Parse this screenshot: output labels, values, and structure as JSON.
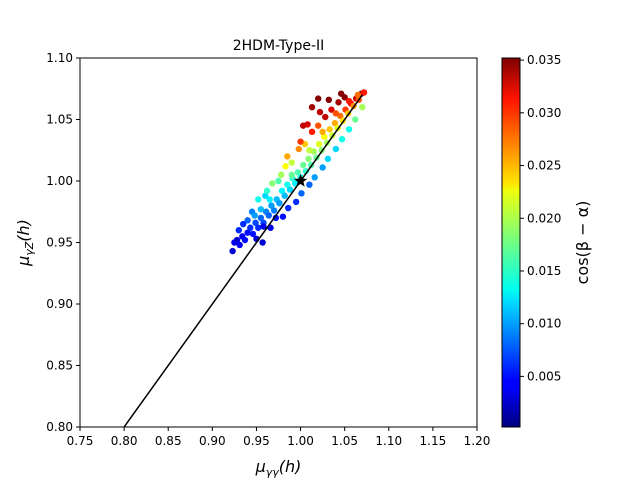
{
  "chart_data": {
    "type": "scatter",
    "title": "2HDM-Type-II",
    "xlabel_base": "μ",
    "xlabel_sub": "γγ",
    "xlabel_arg": "(h)",
    "ylabel_base": "μ",
    "ylabel_sub": "γZ",
    "ylabel_arg": "(h)",
    "xlim": [
      0.75,
      1.2
    ],
    "ylim": [
      0.8,
      1.1
    ],
    "xticks": [
      "0.75",
      "0.80",
      "0.85",
      "0.90",
      "0.95",
      "1.00",
      "1.05",
      "1.10",
      "1.15",
      "1.20"
    ],
    "yticks": [
      "0.80",
      "0.85",
      "0.90",
      "0.95",
      "1.00",
      "1.05",
      "1.10"
    ],
    "grid": false,
    "colormap": "jet",
    "colorbar": {
      "label": "cos(β − α)",
      "range": [
        0.0002,
        0.0352
      ],
      "ticks": [
        "0.005",
        "0.010",
        "0.015",
        "0.020",
        "0.025",
        "0.030",
        "0.035"
      ]
    },
    "reference_line": {
      "x": [
        0.8,
        1.07
      ],
      "y": [
        0.8,
        1.07
      ]
    },
    "sm_point": {
      "x": 1.0,
      "y": 1.0,
      "marker": "star"
    },
    "points": [
      [
        0.923,
        0.943,
        0.003
      ],
      [
        0.925,
        0.95,
        0.004
      ],
      [
        0.928,
        0.952,
        0.003
      ],
      [
        0.931,
        0.948,
        0.004
      ],
      [
        0.934,
        0.955,
        0.004
      ],
      [
        0.937,
        0.952,
        0.005
      ],
      [
        0.94,
        0.958,
        0.005
      ],
      [
        0.943,
        0.962,
        0.006
      ],
      [
        0.946,
        0.957,
        0.005
      ],
      [
        0.949,
        0.966,
        0.007
      ],
      [
        0.952,
        0.962,
        0.006
      ],
      [
        0.955,
        0.97,
        0.008
      ],
      [
        0.958,
        0.966,
        0.007
      ],
      [
        0.961,
        0.975,
        0.009
      ],
      [
        0.964,
        0.972,
        0.008
      ],
      [
        0.967,
        0.98,
        0.01
      ],
      [
        0.97,
        0.976,
        0.009
      ],
      [
        0.973,
        0.985,
        0.011
      ],
      [
        0.976,
        0.982,
        0.01
      ],
      [
        0.979,
        0.992,
        0.013
      ],
      [
        0.982,
        0.988,
        0.011
      ],
      [
        0.985,
        0.997,
        0.014
      ],
      [
        0.988,
        0.993,
        0.012
      ],
      [
        0.991,
        1.002,
        0.015
      ],
      [
        0.994,
        0.998,
        0.013
      ],
      [
        0.997,
        1.007,
        0.016
      ],
      [
        1.0,
        1.003,
        0.014
      ],
      [
        1.003,
        1.013,
        0.017
      ],
      [
        1.006,
        1.008,
        0.015
      ],
      [
        1.009,
        1.018,
        0.018
      ],
      [
        1.012,
        1.013,
        0.016
      ],
      [
        1.015,
        1.024,
        0.019
      ],
      [
        1.018,
        1.019,
        0.017
      ],
      [
        1.021,
        1.03,
        0.021
      ],
      [
        1.024,
        1.025,
        0.018
      ],
      [
        1.027,
        1.036,
        0.022
      ],
      [
        1.03,
        1.031,
        0.019
      ],
      [
        1.033,
        1.042,
        0.024
      ],
      [
        1.036,
        1.037,
        0.02
      ],
      [
        1.039,
        1.047,
        0.025
      ],
      [
        1.042,
        1.043,
        0.021
      ],
      [
        1.045,
        1.053,
        0.027
      ],
      [
        1.048,
        1.049,
        0.023
      ],
      [
        1.051,
        1.058,
        0.029
      ],
      [
        1.054,
        1.055,
        0.024
      ],
      [
        1.057,
        1.063,
        0.031
      ],
      [
        1.06,
        1.061,
        0.026
      ],
      [
        1.063,
        1.067,
        0.033
      ],
      [
        1.066,
        1.066,
        0.028
      ],
      [
        1.069,
        1.071,
        0.034
      ],
      [
        1.072,
        1.072,
        0.03
      ],
      [
        0.93,
        0.96,
        0.006
      ],
      [
        0.945,
        0.975,
        0.009
      ],
      [
        0.96,
        0.988,
        0.012
      ],
      [
        0.975,
        1.0,
        0.016
      ],
      [
        0.99,
        1.015,
        0.02
      ],
      [
        1.005,
        1.03,
        0.024
      ],
      [
        1.02,
        1.045,
        0.028
      ],
      [
        1.035,
        1.058,
        0.032
      ],
      [
        1.05,
        1.068,
        0.035
      ],
      [
        0.952,
        0.985,
        0.014
      ],
      [
        0.968,
        0.998,
        0.018
      ],
      [
        0.983,
        1.012,
        0.022
      ],
      [
        0.998,
        1.026,
        0.026
      ],
      [
        1.013,
        1.04,
        0.03
      ],
      [
        1.028,
        1.052,
        0.033
      ],
      [
        1.043,
        1.064,
        0.034
      ],
      [
        0.94,
        0.968,
        0.008
      ],
      [
        0.962,
        0.992,
        0.015
      ],
      [
        0.985,
        1.02,
        0.025
      ],
      [
        1.008,
        1.046,
        0.032
      ],
      [
        1.032,
        1.066,
        0.035
      ],
      [
        0.955,
        0.977,
        0.011
      ],
      [
        0.978,
        1.005,
        0.019
      ],
      [
        1.0,
        1.032,
        0.029
      ],
      [
        1.022,
        1.056,
        0.033
      ],
      [
        1.046,
        1.071,
        0.035
      ],
      [
        0.935,
        0.965,
        0.006
      ],
      [
        0.958,
        0.963,
        0.004
      ],
      [
        0.972,
        0.97,
        0.005
      ],
      [
        0.986,
        0.978,
        0.006
      ],
      [
        1.001,
        0.99,
        0.008
      ],
      [
        1.016,
        1.003,
        0.01
      ],
      [
        1.031,
        1.018,
        0.012
      ],
      [
        1.047,
        1.034,
        0.014
      ],
      [
        1.062,
        1.05,
        0.017
      ],
      [
        1.07,
        1.06,
        0.019
      ],
      [
        0.95,
        0.953,
        0.003
      ],
      [
        0.966,
        0.962,
        0.004
      ],
      [
        0.98,
        0.971,
        0.005
      ],
      [
        0.995,
        0.983,
        0.006
      ],
      [
        1.01,
        0.997,
        0.008
      ],
      [
        1.025,
        1.011,
        0.01
      ],
      [
        1.04,
        1.026,
        0.012
      ],
      [
        1.055,
        1.042,
        0.014
      ],
      [
        1.01,
        1.025,
        0.02
      ],
      [
        1.025,
        1.04,
        0.025
      ],
      [
        1.04,
        1.055,
        0.028
      ],
      [
        1.055,
        1.065,
        0.03
      ],
      [
        0.99,
        1.005,
        0.017
      ],
      [
        0.965,
        0.985,
        0.013
      ],
      [
        0.948,
        0.972,
        0.01
      ],
      [
        1.065,
        1.07,
        0.027
      ],
      [
        0.957,
        0.95,
        0.003
      ],
      [
        1.013,
        1.06,
        0.034
      ],
      [
        1.02,
        1.067,
        0.035
      ],
      [
        1.003,
        1.045,
        0.033
      ]
    ]
  }
}
